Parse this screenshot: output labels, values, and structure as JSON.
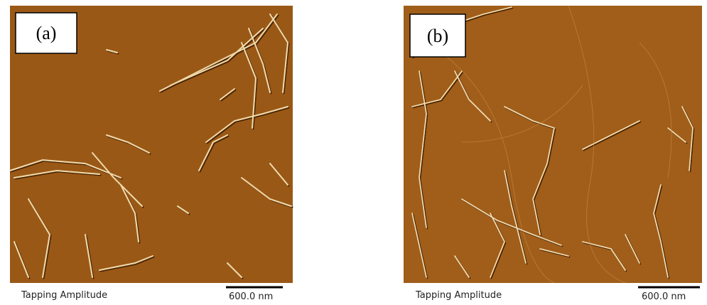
{
  "panels": [
    {
      "label": "(a)",
      "caption": "Tapping Amplitude",
      "scale_bar": "600.0 nm"
    },
    {
      "label": "(b)",
      "caption": "Tapping Amplitude",
      "scale_bar": "600.0 nm"
    }
  ]
}
